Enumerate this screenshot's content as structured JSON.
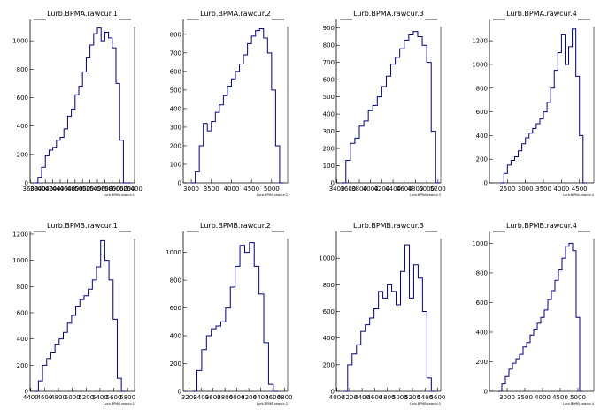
{
  "chart_data": [
    {
      "type": "area",
      "title": "Lurb.BPMA.rawcur.1",
      "xlabel": "Lurb.BPMA.rawcur.1",
      "xlim": [
        3590,
        6400
      ],
      "ylim": [
        0,
        1150
      ],
      "line_color": "#00007f",
      "x_ticks": [
        {
          "v": 3600,
          "label": "3600"
        },
        {
          "v": 3800,
          "label": "3800"
        },
        {
          "v": 4000,
          "label": "4000"
        },
        {
          "v": 4200,
          "label": "4200"
        },
        {
          "v": 4400,
          "label": "4400"
        },
        {
          "v": 4600,
          "label": "4600"
        },
        {
          "v": 4800,
          "label": "4800"
        },
        {
          "v": 5000,
          "label": "5000"
        },
        {
          "v": 5200,
          "label": "5200"
        },
        {
          "v": 5400,
          "label": "5400"
        },
        {
          "v": 5600,
          "label": "5600"
        },
        {
          "v": 5800,
          "label": "5800"
        },
        {
          "v": 6000,
          "label": "6000"
        },
        {
          "v": 6200,
          "label": "6200"
        },
        {
          "v": 6400,
          "label": "6400"
        }
      ],
      "y_ticks": [
        {
          "v": 0,
          "label": "0"
        },
        {
          "v": 200,
          "label": "200"
        },
        {
          "v": 400,
          "label": "400"
        },
        {
          "v": 600,
          "label": "600"
        },
        {
          "v": 800,
          "label": "800"
        },
        {
          "v": 1000,
          "label": "1000"
        }
      ],
      "x": [
        3700,
        3800,
        3900,
        4000,
        4100,
        4200,
        4300,
        4400,
        4500,
        4600,
        4700,
        4800,
        4900,
        5000,
        5100,
        5200,
        5300,
        5400,
        5500,
        5600,
        5700,
        5800,
        5900,
        6000,
        6100,
        6200
      ],
      "values": [
        0,
        40,
        110,
        190,
        230,
        250,
        300,
        320,
        380,
        470,
        520,
        620,
        680,
        780,
        880,
        970,
        1050,
        1090,
        1000,
        1060,
        1020,
        950,
        700,
        300,
        0,
        0
      ]
    },
    {
      "type": "area",
      "title": "Lurb.BPMA.rawcur.2",
      "xlabel": "Lurb.BPMA.rawcur.2",
      "xlim": [
        2800,
        5400
      ],
      "ylim": [
        0,
        880
      ],
      "line_color": "#00007f",
      "x_ticks": [
        {
          "v": 3000,
          "label": "3000"
        },
        {
          "v": 3500,
          "label": "3500"
        },
        {
          "v": 4000,
          "label": "4000"
        },
        {
          "v": 4500,
          "label": "4500"
        },
        {
          "v": 5000,
          "label": "5000"
        }
      ],
      "y_ticks": [
        {
          "v": 0,
          "label": "0"
        },
        {
          "v": 100,
          "label": "100"
        },
        {
          "v": 200,
          "label": "200"
        },
        {
          "v": 300,
          "label": "300"
        },
        {
          "v": 400,
          "label": "400"
        },
        {
          "v": 500,
          "label": "500"
        },
        {
          "v": 600,
          "label": "600"
        },
        {
          "v": 700,
          "label": "700"
        },
        {
          "v": 800,
          "label": "800"
        }
      ],
      "x": [
        3000,
        3100,
        3200,
        3300,
        3400,
        3500,
        3600,
        3700,
        3800,
        3900,
        4000,
        4100,
        4200,
        4300,
        4400,
        4500,
        4600,
        4700,
        4800,
        4900,
        5000,
        5100,
        5200
      ],
      "values": [
        0,
        60,
        200,
        320,
        280,
        330,
        380,
        420,
        470,
        520,
        560,
        600,
        640,
        690,
        750,
        790,
        820,
        830,
        780,
        700,
        500,
        200,
        0
      ]
    },
    {
      "type": "area",
      "title": "Lurb.BPMA.rawcur.3",
      "xlabel": "Lurb.BPMA.rawcur.3",
      "xlim": [
        3390,
        5250
      ],
      "ylim": [
        0,
        950
      ],
      "line_color": "#00007f",
      "x_ticks": [
        {
          "v": 3400,
          "label": "3400"
        },
        {
          "v": 3600,
          "label": "3600"
        },
        {
          "v": 3800,
          "label": "3800"
        },
        {
          "v": 4000,
          "label": "4000"
        },
        {
          "v": 4200,
          "label": "4200"
        },
        {
          "v": 4400,
          "label": "4400"
        },
        {
          "v": 4600,
          "label": "4600"
        },
        {
          "v": 4800,
          "label": "4800"
        },
        {
          "v": 5000,
          "label": "5000"
        },
        {
          "v": 5200,
          "label": "5200"
        }
      ],
      "y_ticks": [
        {
          "v": 0,
          "label": "0"
        },
        {
          "v": 100,
          "label": "100"
        },
        {
          "v": 200,
          "label": "200"
        },
        {
          "v": 300,
          "label": "300"
        },
        {
          "v": 400,
          "label": "400"
        },
        {
          "v": 500,
          "label": "500"
        },
        {
          "v": 600,
          "label": "600"
        },
        {
          "v": 700,
          "label": "700"
        },
        {
          "v": 800,
          "label": "800"
        },
        {
          "v": 900,
          "label": "900"
        }
      ],
      "x": [
        3480,
        3560,
        3640,
        3720,
        3800,
        3880,
        3960,
        4040,
        4120,
        4200,
        4280,
        4360,
        4440,
        4520,
        4600,
        4680,
        4760,
        4840,
        4920,
        5000,
        5080,
        5160
      ],
      "values": [
        0,
        130,
        230,
        260,
        330,
        360,
        420,
        450,
        500,
        560,
        620,
        690,
        730,
        780,
        830,
        860,
        880,
        850,
        800,
        700,
        300,
        0
      ]
    },
    {
      "type": "area",
      "title": "Lurb.BPMA.rawcur.4",
      "xlabel": "Lurb.BPMA.rawcur.4",
      "xlim": [
        2000,
        4900
      ],
      "ylim": [
        0,
        1380
      ],
      "line_color": "#00007f",
      "x_ticks": [
        {
          "v": 2500,
          "label": "2500"
        },
        {
          "v": 3000,
          "label": "3000"
        },
        {
          "v": 3500,
          "label": "3500"
        },
        {
          "v": 4000,
          "label": "4000"
        },
        {
          "v": 4500,
          "label": "4500"
        }
      ],
      "y_ticks": [
        {
          "v": 0,
          "label": "0"
        },
        {
          "v": 200,
          "label": "200"
        },
        {
          "v": 400,
          "label": "400"
        },
        {
          "v": 600,
          "label": "600"
        },
        {
          "v": 800,
          "label": "800"
        },
        {
          "v": 1000,
          "label": "1000"
        },
        {
          "v": 1200,
          "label": "1200"
        }
      ],
      "x": [
        2300,
        2400,
        2500,
        2600,
        2700,
        2800,
        2900,
        3000,
        3100,
        3200,
        3300,
        3400,
        3500,
        3600,
        3700,
        3800,
        3900,
        4000,
        4100,
        4200,
        4300,
        4400,
        4500,
        4600
      ],
      "values": [
        0,
        80,
        150,
        190,
        220,
        270,
        330,
        380,
        420,
        460,
        500,
        540,
        600,
        680,
        800,
        950,
        1100,
        1250,
        1000,
        1150,
        1300,
        900,
        400,
        0
      ]
    },
    {
      "type": "area",
      "title": "Lurb.BPMB.rawcur.1",
      "xlabel": "Lurb.BPMB.rawcur.1",
      "xlim": [
        4390,
        5900
      ],
      "ylim": [
        0,
        1220
      ],
      "line_color": "#00007f",
      "x_ticks": [
        {
          "v": 4400,
          "label": "4400"
        },
        {
          "v": 4600,
          "label": "4600"
        },
        {
          "v": 4800,
          "label": "4800"
        },
        {
          "v": 5000,
          "label": "5000"
        },
        {
          "v": 5200,
          "label": "5200"
        },
        {
          "v": 5400,
          "label": "5400"
        },
        {
          "v": 5600,
          "label": "5600"
        },
        {
          "v": 5800,
          "label": "5800"
        }
      ],
      "y_ticks": [
        {
          "v": 0,
          "label": "0"
        },
        {
          "v": 200,
          "label": "200"
        },
        {
          "v": 400,
          "label": "400"
        },
        {
          "v": 600,
          "label": "600"
        },
        {
          "v": 800,
          "label": "800"
        },
        {
          "v": 1000,
          "label": "1000"
        },
        {
          "v": 1200,
          "label": "1200"
        }
      ],
      "x": [
        4450,
        4510,
        4570,
        4630,
        4690,
        4750,
        4810,
        4870,
        4930,
        4990,
        5050,
        5110,
        5170,
        5230,
        5290,
        5350,
        5410,
        5470,
        5530,
        5590,
        5650,
        5710
      ],
      "values": [
        0,
        80,
        200,
        250,
        300,
        360,
        400,
        450,
        520,
        580,
        650,
        700,
        730,
        780,
        850,
        950,
        1150,
        1000,
        850,
        550,
        100,
        0
      ]
    },
    {
      "type": "area",
      "title": "Lurb.BPMB.rawcur.2",
      "xlabel": "Lurb.BPMB.rawcur.2",
      "xlim": [
        3100,
        4850
      ],
      "ylim": [
        0,
        1150
      ],
      "line_color": "#00007f",
      "x_ticks": [
        {
          "v": 3200,
          "label": "3200"
        },
        {
          "v": 3400,
          "label": "3400"
        },
        {
          "v": 3600,
          "label": "3600"
        },
        {
          "v": 3800,
          "label": "3800"
        },
        {
          "v": 4000,
          "label": "4000"
        },
        {
          "v": 4200,
          "label": "4200"
        },
        {
          "v": 4400,
          "label": "4400"
        },
        {
          "v": 4600,
          "label": "4600"
        },
        {
          "v": 4800,
          "label": "4800"
        }
      ],
      "y_ticks": [
        {
          "v": 0,
          "label": "0"
        },
        {
          "v": 200,
          "label": "200"
        },
        {
          "v": 400,
          "label": "400"
        },
        {
          "v": 600,
          "label": "600"
        },
        {
          "v": 800,
          "label": "800"
        },
        {
          "v": 1000,
          "label": "1000"
        }
      ],
      "x": [
        3250,
        3330,
        3410,
        3490,
        3570,
        3650,
        3730,
        3810,
        3890,
        3970,
        4050,
        4130,
        4210,
        4290,
        4370,
        4450,
        4530,
        4610
      ],
      "values": [
        0,
        150,
        300,
        400,
        450,
        470,
        500,
        600,
        750,
        900,
        1050,
        1000,
        1070,
        900,
        700,
        350,
        50,
        0
      ]
    },
    {
      "type": "area",
      "title": "Lurb.BPMB.rawcur.3",
      "xlabel": "Lurb.BPMB.rawcur.3",
      "xlim": [
        3990,
        5650
      ],
      "ylim": [
        0,
        1200
      ],
      "line_color": "#00007f",
      "x_ticks": [
        {
          "v": 4000,
          "label": "4000"
        },
        {
          "v": 4200,
          "label": "4200"
        },
        {
          "v": 4400,
          "label": "4400"
        },
        {
          "v": 4600,
          "label": "4600"
        },
        {
          "v": 4800,
          "label": "4800"
        },
        {
          "v": 5000,
          "label": "5000"
        },
        {
          "v": 5200,
          "label": "5200"
        },
        {
          "v": 5400,
          "label": "5400"
        },
        {
          "v": 5600,
          "label": "5600"
        }
      ],
      "y_ticks": [
        {
          "v": 0,
          "label": "0"
        },
        {
          "v": 200,
          "label": "200"
        },
        {
          "v": 400,
          "label": "400"
        },
        {
          "v": 600,
          "label": "600"
        },
        {
          "v": 800,
          "label": "800"
        },
        {
          "v": 1000,
          "label": "1000"
        }
      ],
      "x": [
        4100,
        4170,
        4240,
        4310,
        4380,
        4450,
        4520,
        4590,
        4660,
        4730,
        4800,
        4870,
        4940,
        5010,
        5080,
        5150,
        5220,
        5290,
        5360,
        5430,
        5500
      ],
      "values": [
        0,
        200,
        280,
        350,
        450,
        500,
        550,
        620,
        750,
        700,
        800,
        750,
        650,
        900,
        1100,
        700,
        950,
        850,
        600,
        100,
        0
      ]
    },
    {
      "type": "area",
      "title": "Lurb.BPMB.rawcur.4",
      "xlabel": "Lurb.BPMB.rawcur.4",
      "xlim": [
        2500,
        5450
      ],
      "ylim": [
        0,
        1080
      ],
      "line_color": "#00007f",
      "x_ticks": [
        {
          "v": 3000,
          "label": "3000"
        },
        {
          "v": 3500,
          "label": "3500"
        },
        {
          "v": 4000,
          "label": "4000"
        },
        {
          "v": 4500,
          "label": "4500"
        },
        {
          "v": 5000,
          "label": "5000"
        }
      ],
      "y_ticks": [
        {
          "v": 0,
          "label": "0"
        },
        {
          "v": 200,
          "label": "200"
        },
        {
          "v": 400,
          "label": "400"
        },
        {
          "v": 600,
          "label": "600"
        },
        {
          "v": 800,
          "label": "800"
        },
        {
          "v": 1000,
          "label": "1000"
        }
      ],
      "x": [
        2750,
        2850,
        2950,
        3050,
        3150,
        3250,
        3350,
        3450,
        3550,
        3650,
        3750,
        3850,
        3950,
        4050,
        4150,
        4250,
        4350,
        4450,
        4550,
        4650,
        4750,
        4850,
        4950,
        5050
      ],
      "values": [
        0,
        50,
        100,
        150,
        190,
        220,
        250,
        300,
        330,
        380,
        420,
        460,
        500,
        550,
        620,
        680,
        750,
        820,
        900,
        980,
        1000,
        950,
        500,
        0
      ]
    }
  ]
}
